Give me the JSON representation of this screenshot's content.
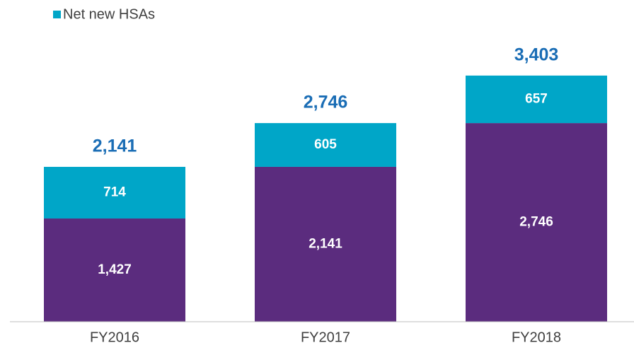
{
  "chart_data": {
    "type": "bar",
    "stacked": true,
    "categories": [
      "FY2016",
      "FY2017",
      "FY2018"
    ],
    "series": [
      {
        "color": "#5b2c7e",
        "values": [
          1427,
          2141,
          2746
        ],
        "value_labels": [
          "1,427",
          "2,141",
          "2,746"
        ]
      },
      {
        "name": "Net new HSAs",
        "color": "#00a6c8",
        "values": [
          714,
          605,
          657
        ],
        "value_labels": [
          "714",
          "605",
          "657"
        ]
      }
    ],
    "totals": {
      "color": "#1a6db5",
      "values": [
        2141,
        2746,
        3403
      ],
      "value_labels": [
        "2,141",
        "2,746",
        "3,403"
      ]
    },
    "legend": "top-left"
  }
}
